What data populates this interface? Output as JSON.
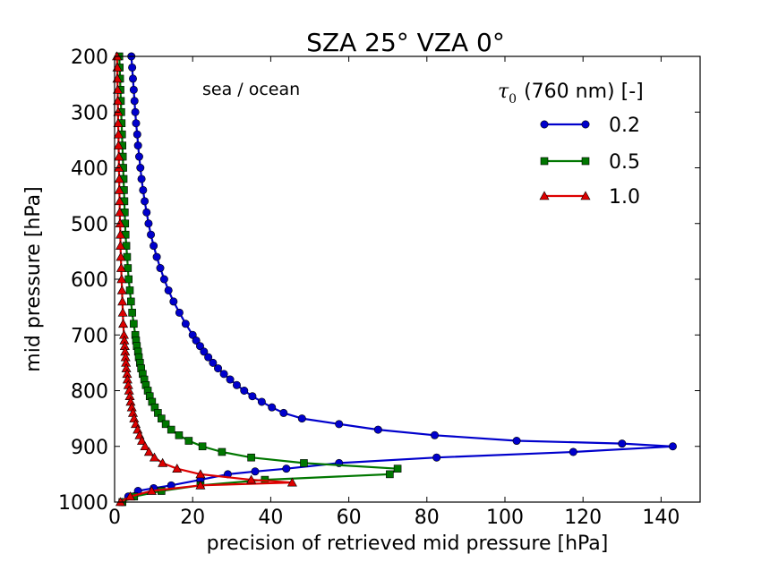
{
  "chart_data": {
    "type": "line",
    "title": "SZA 25°  VZA 0°",
    "xlabel": "precision of retrieved mid pressure [hPa]",
    "ylabel": "mid pressure [hPa]",
    "xlim": [
      0,
      150
    ],
    "ylim": [
      1000,
      200
    ],
    "y_inverted": true,
    "xticks": [
      "0",
      "20",
      "40",
      "60",
      "80",
      "100",
      "120",
      "140"
    ],
    "yticks": [
      "200",
      "300",
      "400",
      "500",
      "600",
      "700",
      "800",
      "900",
      "1000"
    ],
    "annotation": "sea / ocean",
    "legend": {
      "title_symbol": "τ",
      "title_subscript": "0",
      "title_text": "(760 nm) [-]",
      "placement": "top-right"
    },
    "grid": false,
    "series": [
      {
        "name": "0.2",
        "color": "#0000cc",
        "marker": "circle",
        "points": [
          [
            4.3,
            200
          ],
          [
            4.5,
            220
          ],
          [
            4.7,
            240
          ],
          [
            4.9,
            260
          ],
          [
            5.1,
            280
          ],
          [
            5.3,
            300
          ],
          [
            5.5,
            320
          ],
          [
            5.8,
            340
          ],
          [
            6.0,
            360
          ],
          [
            6.3,
            380
          ],
          [
            6.6,
            400
          ],
          [
            6.9,
            420
          ],
          [
            7.3,
            440
          ],
          [
            7.7,
            460
          ],
          [
            8.2,
            480
          ],
          [
            8.7,
            500
          ],
          [
            9.3,
            520
          ],
          [
            10.0,
            540
          ],
          [
            10.8,
            560
          ],
          [
            11.7,
            580
          ],
          [
            12.7,
            600
          ],
          [
            13.8,
            620
          ],
          [
            15.1,
            640
          ],
          [
            16.6,
            660
          ],
          [
            18.2,
            680
          ],
          [
            20.0,
            700
          ],
          [
            20.9,
            710
          ],
          [
            21.9,
            720
          ],
          [
            22.9,
            730
          ],
          [
            24.0,
            740
          ],
          [
            25.2,
            750
          ],
          [
            26.5,
            760
          ],
          [
            28.0,
            770
          ],
          [
            29.6,
            780
          ],
          [
            31.3,
            790
          ],
          [
            33.2,
            800
          ],
          [
            35.3,
            810
          ],
          [
            37.7,
            820
          ],
          [
            40.3,
            830
          ],
          [
            43.3,
            840
          ],
          [
            48.0,
            850
          ],
          [
            57.5,
            860
          ],
          [
            67.5,
            870
          ],
          [
            82.0,
            880
          ],
          [
            103.0,
            890
          ],
          [
            130.0,
            895
          ],
          [
            143.0,
            900
          ],
          [
            117.5,
            910
          ],
          [
            82.5,
            920
          ],
          [
            57.5,
            930
          ],
          [
            44.0,
            940
          ],
          [
            36.0,
            945
          ],
          [
            29.0,
            950
          ],
          [
            22.0,
            960
          ],
          [
            14.5,
            970
          ],
          [
            10.0,
            975
          ],
          [
            6.0,
            980
          ],
          [
            3.5,
            990
          ],
          [
            2.0,
            1000
          ]
        ]
      },
      {
        "name": "0.5",
        "color": "#007700",
        "marker": "square",
        "points": [
          [
            1.2,
            200
          ],
          [
            1.3,
            220
          ],
          [
            1.4,
            240
          ],
          [
            1.5,
            260
          ],
          [
            1.6,
            280
          ],
          [
            1.7,
            300
          ],
          [
            1.8,
            320
          ],
          [
            1.9,
            340
          ],
          [
            2.0,
            360
          ],
          [
            2.1,
            380
          ],
          [
            2.2,
            400
          ],
          [
            2.3,
            420
          ],
          [
            2.4,
            440
          ],
          [
            2.5,
            460
          ],
          [
            2.6,
            480
          ],
          [
            2.7,
            500
          ],
          [
            2.8,
            520
          ],
          [
            3.0,
            540
          ],
          [
            3.2,
            560
          ],
          [
            3.4,
            580
          ],
          [
            3.6,
            600
          ],
          [
            3.9,
            620
          ],
          [
            4.2,
            640
          ],
          [
            4.5,
            660
          ],
          [
            4.9,
            680
          ],
          [
            5.3,
            700
          ],
          [
            5.5,
            710
          ],
          [
            5.7,
            720
          ],
          [
            6.0,
            730
          ],
          [
            6.2,
            740
          ],
          [
            6.5,
            750
          ],
          [
            6.8,
            760
          ],
          [
            7.2,
            770
          ],
          [
            7.6,
            780
          ],
          [
            8.0,
            790
          ],
          [
            8.5,
            800
          ],
          [
            9.0,
            810
          ],
          [
            9.6,
            820
          ],
          [
            10.3,
            830
          ],
          [
            11.1,
            840
          ],
          [
            12.0,
            850
          ],
          [
            13.1,
            860
          ],
          [
            14.5,
            870
          ],
          [
            16.5,
            880
          ],
          [
            19.0,
            890
          ],
          [
            22.5,
            900
          ],
          [
            27.5,
            910
          ],
          [
            35.0,
            920
          ],
          [
            48.5,
            930
          ],
          [
            72.5,
            940
          ],
          [
            70.5,
            950
          ],
          [
            38.5,
            960
          ],
          [
            22.0,
            970
          ],
          [
            12.0,
            980
          ],
          [
            5.0,
            990
          ],
          [
            2.0,
            1000
          ]
        ]
      },
      {
        "name": "1.0",
        "color": "#dd0000",
        "marker": "triangle",
        "points": [
          [
            0.6,
            200
          ],
          [
            0.7,
            220
          ],
          [
            0.7,
            240
          ],
          [
            0.8,
            260
          ],
          [
            0.8,
            280
          ],
          [
            0.9,
            300
          ],
          [
            0.9,
            320
          ],
          [
            1.0,
            340
          ],
          [
            1.0,
            360
          ],
          [
            1.1,
            380
          ],
          [
            1.1,
            400
          ],
          [
            1.2,
            420
          ],
          [
            1.2,
            440
          ],
          [
            1.3,
            460
          ],
          [
            1.3,
            480
          ],
          [
            1.4,
            500
          ],
          [
            1.5,
            520
          ],
          [
            1.5,
            540
          ],
          [
            1.6,
            560
          ],
          [
            1.7,
            580
          ],
          [
            1.8,
            600
          ],
          [
            1.9,
            620
          ],
          [
            2.0,
            640
          ],
          [
            2.1,
            660
          ],
          [
            2.2,
            680
          ],
          [
            2.4,
            700
          ],
          [
            2.5,
            710
          ],
          [
            2.6,
            720
          ],
          [
            2.7,
            730
          ],
          [
            2.8,
            740
          ],
          [
            2.9,
            750
          ],
          [
            3.0,
            760
          ],
          [
            3.2,
            770
          ],
          [
            3.3,
            780
          ],
          [
            3.5,
            790
          ],
          [
            3.7,
            800
          ],
          [
            3.9,
            810
          ],
          [
            4.1,
            820
          ],
          [
            4.4,
            830
          ],
          [
            4.7,
            840
          ],
          [
            5.0,
            850
          ],
          [
            5.4,
            860
          ],
          [
            5.9,
            870
          ],
          [
            6.4,
            880
          ],
          [
            7.0,
            890
          ],
          [
            7.8,
            900
          ],
          [
            8.8,
            910
          ],
          [
            10.2,
            920
          ],
          [
            12.3,
            930
          ],
          [
            16.0,
            940
          ],
          [
            22.0,
            950
          ],
          [
            35.0,
            960
          ],
          [
            45.5,
            965
          ],
          [
            22.0,
            970
          ],
          [
            9.5,
            980
          ],
          [
            4.0,
            990
          ],
          [
            1.5,
            1000
          ]
        ]
      }
    ]
  }
}
